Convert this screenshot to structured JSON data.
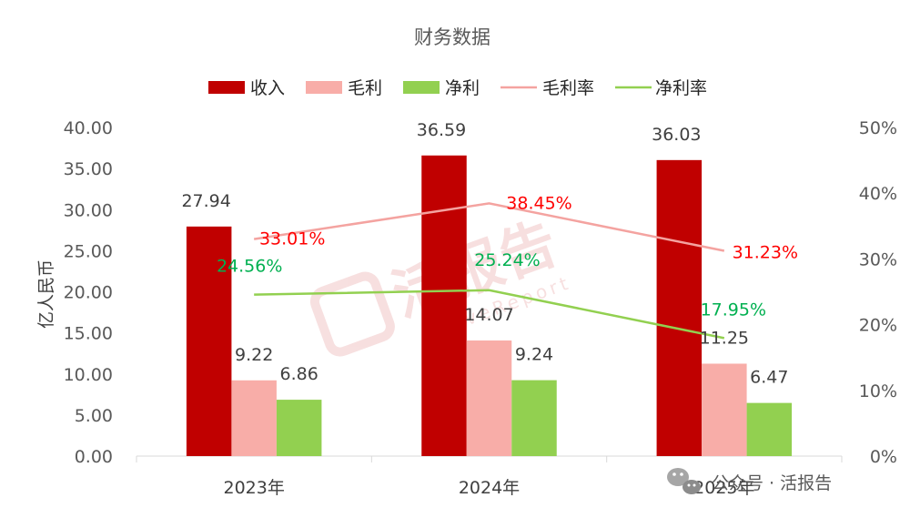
{
  "chart_data": {
    "type": "bar",
    "title": "财务数据",
    "categories": [
      "2023年",
      "2024年",
      "2025年"
    ],
    "ylabel": "亿人民币",
    "ylim": [
      0,
      40
    ],
    "y_ticks": [
      "0.00",
      "5.00",
      "10.00",
      "15.00",
      "20.00",
      "25.00",
      "30.00",
      "35.00",
      "40.00"
    ],
    "y2lim": [
      0,
      50
    ],
    "y2_ticks": [
      "0%",
      "10%",
      "20%",
      "30%",
      "40%",
      "50%"
    ],
    "legend_position": "top",
    "grid": false,
    "series": [
      {
        "name": "收入",
        "type": "bar",
        "color": "#C00000",
        "values": [
          27.94,
          36.59,
          36.03
        ],
        "labels": [
          "27.94",
          "36.59",
          "36.03"
        ]
      },
      {
        "name": "毛利",
        "type": "bar",
        "color": "#F8ADA8",
        "values": [
          9.22,
          14.07,
          11.25
        ],
        "labels": [
          "9.22",
          "14.07",
          "11.25"
        ]
      },
      {
        "name": "净利",
        "type": "bar",
        "color": "#92D050",
        "values": [
          6.86,
          9.24,
          6.47
        ],
        "labels": [
          "6.86",
          "9.24",
          "6.47"
        ]
      },
      {
        "name": "毛利率",
        "type": "line",
        "axis": "right",
        "color": "#F4A3A0",
        "label_color": "#FF0000",
        "values": [
          33.01,
          38.45,
          31.23
        ],
        "labels": [
          "33.01%",
          "38.45%",
          "31.23%"
        ]
      },
      {
        "name": "净利率",
        "type": "line",
        "axis": "right",
        "color": "#92D050",
        "label_color": "#00B050",
        "values": [
          24.56,
          25.24,
          17.95
        ],
        "labels": [
          "24.56%",
          "25.24%",
          "17.95%"
        ]
      }
    ]
  },
  "watermark": {
    "logo_text": "活报告",
    "logo_subtext": "LiveReport",
    "footer_text": "公众号 · 活报告",
    "footer_icon": "wechat-icon"
  }
}
